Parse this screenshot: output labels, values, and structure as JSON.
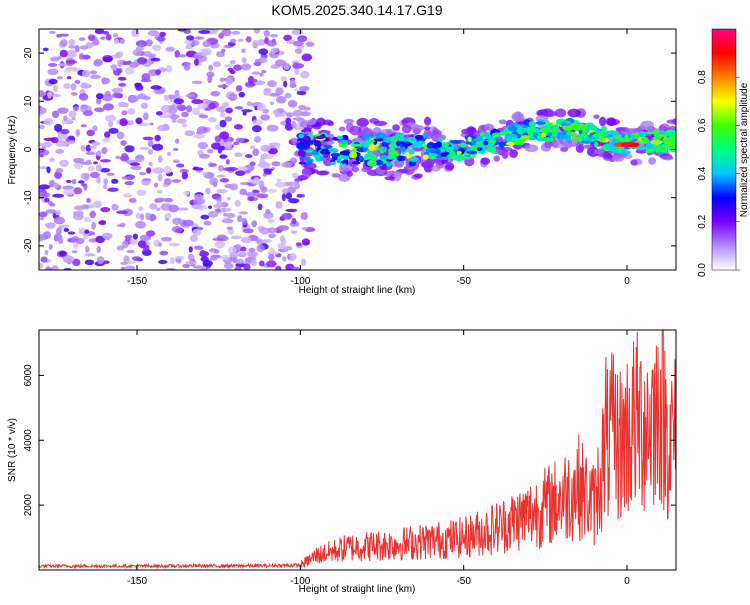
{
  "title": "KOM5.2025.340.14.17.G19",
  "chart_data": [
    {
      "type": "heatmap",
      "xlabel": "Height of straight line (km)",
      "ylabel": "Frequency (Hz)",
      "xlim": [
        -180,
        15
      ],
      "ylim": [
        -25,
        25
      ],
      "xticks": [
        -150,
        -100,
        -50,
        0
      ],
      "yticks": [
        -20,
        -10,
        0,
        10,
        20
      ],
      "description_series": [
        {
          "name": "noise_region",
          "x_range": [
            -180,
            -100
          ],
          "freq_range": [
            -25,
            25
          ],
          "amplitude_range": [
            0.05,
            0.3
          ]
        },
        {
          "name": "signal_band",
          "x_range": [
            -100,
            15
          ],
          "center_freq_at_x": [
            [
              -100,
              0
            ],
            [
              -50,
              0
            ],
            [
              -30,
              4
            ],
            [
              -15,
              4
            ],
            [
              0,
              1
            ],
            [
              15,
              2
            ]
          ],
          "amplitude_range": [
            0.1,
            1.0
          ]
        }
      ],
      "colorbar": {
        "label": "Normalized spectral amplitude",
        "range": [
          0.0,
          1.0
        ],
        "ticks": [
          "0.0",
          "0.2",
          "0.4",
          "0.6",
          "0.8"
        ],
        "colors": [
          "#ffffff",
          "#b38cff",
          "#7a00ff",
          "#0000ff",
          "#00c8ff",
          "#00ff80",
          "#40ff00",
          "#ffff00",
          "#ff8000",
          "#ff0000",
          "#ff0080"
        ]
      }
    },
    {
      "type": "line",
      "xlabel": "Height of straight line (km)",
      "ylabel": "SNR (10 * v/v)",
      "xlim": [
        -180,
        15
      ],
      "ylim": [
        0,
        7400
      ],
      "xticks": [
        -150,
        -100,
        -50,
        0
      ],
      "yticks": [
        2000,
        4000,
        6000
      ],
      "series": [
        {
          "name": "SNR",
          "color": "#e8332f",
          "envelope_points": [
            [
              -180,
              120
            ],
            [
              -110,
              130
            ],
            [
              -100,
              150
            ],
            [
              -95,
              450
            ],
            [
              -85,
              700
            ],
            [
              -70,
              800
            ],
            [
              -50,
              1000
            ],
            [
              -40,
              1300
            ],
            [
              -30,
              1700
            ],
            [
              -20,
              2200
            ],
            [
              -15,
              2600
            ],
            [
              -10,
              2000
            ],
            [
              -7,
              3500
            ],
            [
              -5,
              4100
            ],
            [
              -2,
              3900
            ],
            [
              2,
              4500
            ],
            [
              7,
              4600
            ],
            [
              10,
              5200
            ],
            [
              13,
              4000
            ],
            [
              15,
              4100
            ]
          ],
          "peaks": [
            [
              -6.5,
              7300
            ],
            [
              9,
              7100
            ]
          ]
        }
      ]
    }
  ]
}
